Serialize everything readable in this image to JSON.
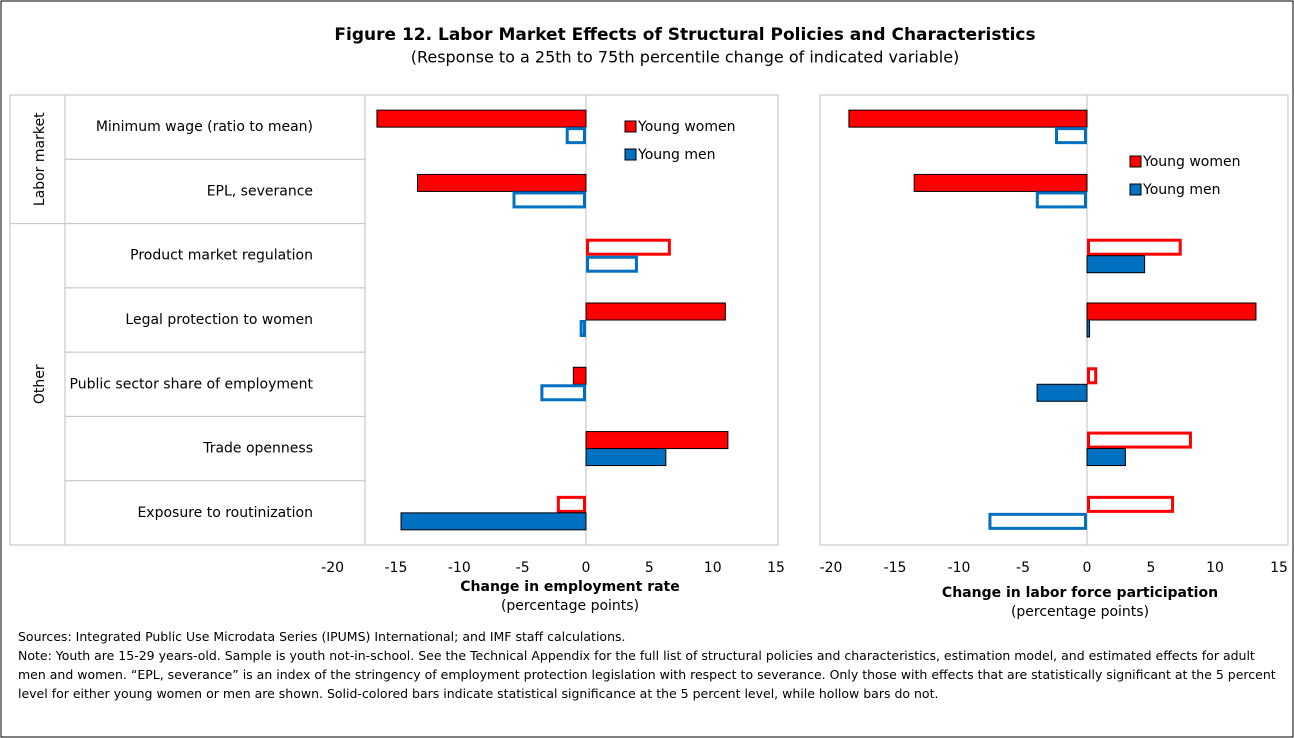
{
  "title": "Figure 12. Labor Market Effects of Structural Policies and Characteristics",
  "subtitle": "(Response to a 25th to 75th percentile change of indicated variable)",
  "chart_data": [
    {
      "type": "bar",
      "orientation": "horizontal",
      "categories": [
        "Minimum wage (ratio to mean)",
        "EPL, severance",
        "Product market regulation",
        "Legal protection to women",
        "Public sector share of employment",
        "Trade openness",
        "Exposure to routinization"
      ],
      "category_groups": [
        "Labor market",
        "Labor market",
        "Other",
        "Other",
        "Other",
        "Other",
        "Other"
      ],
      "series": [
        {
          "name": "Young women",
          "color": "#ff0000",
          "values": [
            -16.5,
            -13.3,
            6.7,
            11.0,
            -1.0,
            11.2,
            -2.3
          ],
          "solid": [
            true,
            true,
            false,
            true,
            true,
            true,
            false
          ]
        },
        {
          "name": "Young men",
          "color": "#0070c0",
          "values": [
            -1.6,
            -5.8,
            4.1,
            -0.5,
            -3.6,
            6.3,
            -14.6
          ],
          "solid": [
            false,
            false,
            false,
            false,
            false,
            true,
            true
          ]
        }
      ],
      "xlim": [
        -20,
        15
      ],
      "xticks": [
        -20,
        -15,
        -10,
        -5,
        0,
        5,
        10,
        15
      ],
      "x_label": "Change in employment rate",
      "x_sublabel": "(percentage points)",
      "legend": "upper right"
    },
    {
      "type": "bar",
      "orientation": "horizontal",
      "series": [
        {
          "name": "Young women",
          "color": "#ff0000",
          "values": [
            -18.6,
            -13.5,
            7.4,
            13.2,
            0.8,
            8.2,
            6.8
          ],
          "solid": [
            true,
            true,
            false,
            true,
            false,
            false,
            false
          ]
        },
        {
          "name": "Young men",
          "color": "#0070c0",
          "values": [
            -2.5,
            -4.0,
            4.5,
            0.2,
            -3.9,
            3.0,
            -7.7
          ],
          "solid": [
            false,
            false,
            true,
            true,
            true,
            true,
            false
          ]
        }
      ],
      "xlim": [
        -20,
        15
      ],
      "xticks": [
        -20,
        -15,
        -10,
        -5,
        0,
        5,
        10,
        15
      ],
      "x_label": "Change in labor force participation",
      "x_sublabel": "(percentage points)",
      "legend": "upper right"
    }
  ],
  "sources": "Sources: Integrated Public Use Microdata Series (IPUMS) International; and IMF staff calculations.",
  "note": "Note: Youth are 15-29 years-old. Sample is youth not-in-school. See the Technical Appendix for the full list of structural policies and characteristics, estimation model, and estimated effects for adult men and women. “EPL, severance” is an index of the stringency of employment protection legislation with respect to severance. Only those with effects that are statistically significant at the 5 percent level for either young women or men are shown. Solid-colored bars indicate statistical significance at the 5 percent level, while hollow bars do not."
}
